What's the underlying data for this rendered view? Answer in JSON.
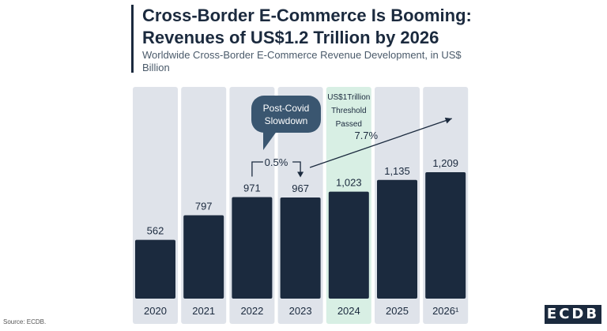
{
  "title": "Cross-Border E-Commerce Is Booming:\nRevenues of US$1.2 Trillion by 2026",
  "subtitle": "Worldwide Cross-Border E-Commerce Revenue Development, in US$ Billion",
  "source": "Source: ECDB.",
  "brand": "ECDB",
  "chart_data": {
    "type": "bar",
    "categories": [
      "2020",
      "2021",
      "2022",
      "2023",
      "2024",
      "2025",
      "2026¹"
    ],
    "values": [
      562,
      797,
      971,
      967,
      1023,
      1135,
      1209
    ],
    "value_labels": [
      "562",
      "797",
      "971",
      "967",
      "1,023",
      "1,135",
      "1,209"
    ],
    "ylim": [
      0,
      1209
    ],
    "highlight_category": "2024",
    "annotations": {
      "threshold_lines": [
        "US$1Trillion",
        "Threshold",
        "Passed"
      ],
      "bubble_lines": [
        "Post-Covid",
        "Slowdown"
      ],
      "growth_2022_2023": "0.5%",
      "growth_2023_2026": "7.7%"
    }
  },
  "colors": {
    "bar": "#1b2a3e",
    "column_bg": "#dfe3ea",
    "highlight_bg": "#d8efe4",
    "bubble": "#3a5670"
  }
}
